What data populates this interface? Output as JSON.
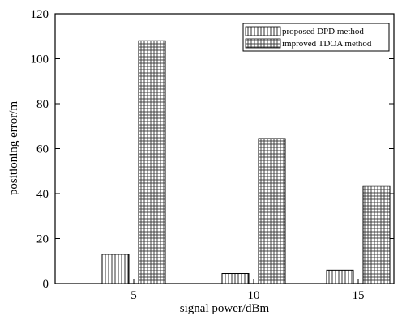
{
  "chart_data": {
    "type": "bar",
    "xlabel": "signal power/dBm",
    "ylabel": "positioning error/m",
    "categories": [
      "5",
      "10",
      "15"
    ],
    "yticks": [
      0,
      20,
      40,
      60,
      80,
      100,
      120
    ],
    "ylim": [
      0,
      120
    ],
    "grid": false,
    "legend_position": "top-right",
    "series": [
      {
        "name": "proposed DPD method",
        "values": [
          13,
          4.5,
          6
        ],
        "pattern": "vertical-lines",
        "color": "#222222"
      },
      {
        "name": "improved TDOA method",
        "values": [
          108,
          64.5,
          43.5
        ],
        "pattern": "grid",
        "color": "#222222"
      }
    ]
  }
}
